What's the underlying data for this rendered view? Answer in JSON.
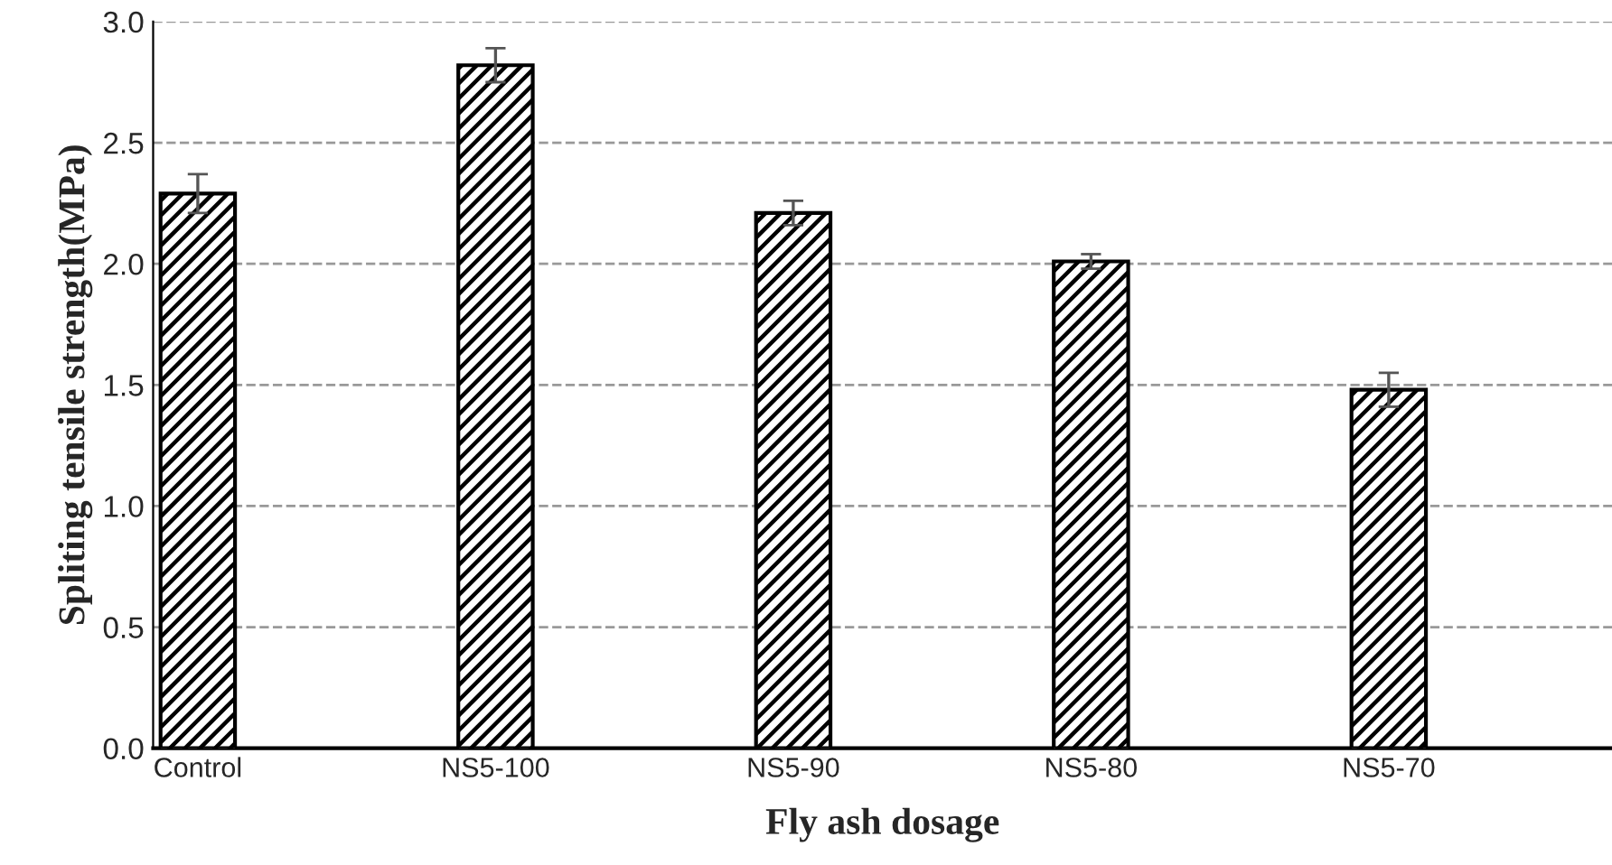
{
  "chart_data": {
    "type": "bar",
    "xlabel": "Fly ash dosage",
    "ylabel": "Spliting tensile strength(MPa)",
    "categories": [
      "Control",
      "NS5-100",
      "NS5-90",
      "NS5-80",
      "NS5-70"
    ],
    "values": [
      2.29,
      2.82,
      2.21,
      2.01,
      1.48
    ],
    "errors": [
      0.08,
      0.07,
      0.05,
      0.03,
      0.07
    ],
    "color": "#000000",
    "ylim": [
      0,
      3.0
    ],
    "yticks": [
      {
        "value": 0,
        "label": "0.0"
      },
      {
        "value": 0.5,
        "label": "0.5"
      },
      {
        "value": 1.0,
        "label": "1.0"
      },
      {
        "value": 1.5,
        "label": "1.5"
      },
      {
        "value": 2.0,
        "label": "2.0"
      },
      {
        "value": 2.5,
        "label": "2.5"
      },
      {
        "value": 3.0,
        "label": "3.0"
      }
    ],
    "grid": "y",
    "legend": false
  }
}
